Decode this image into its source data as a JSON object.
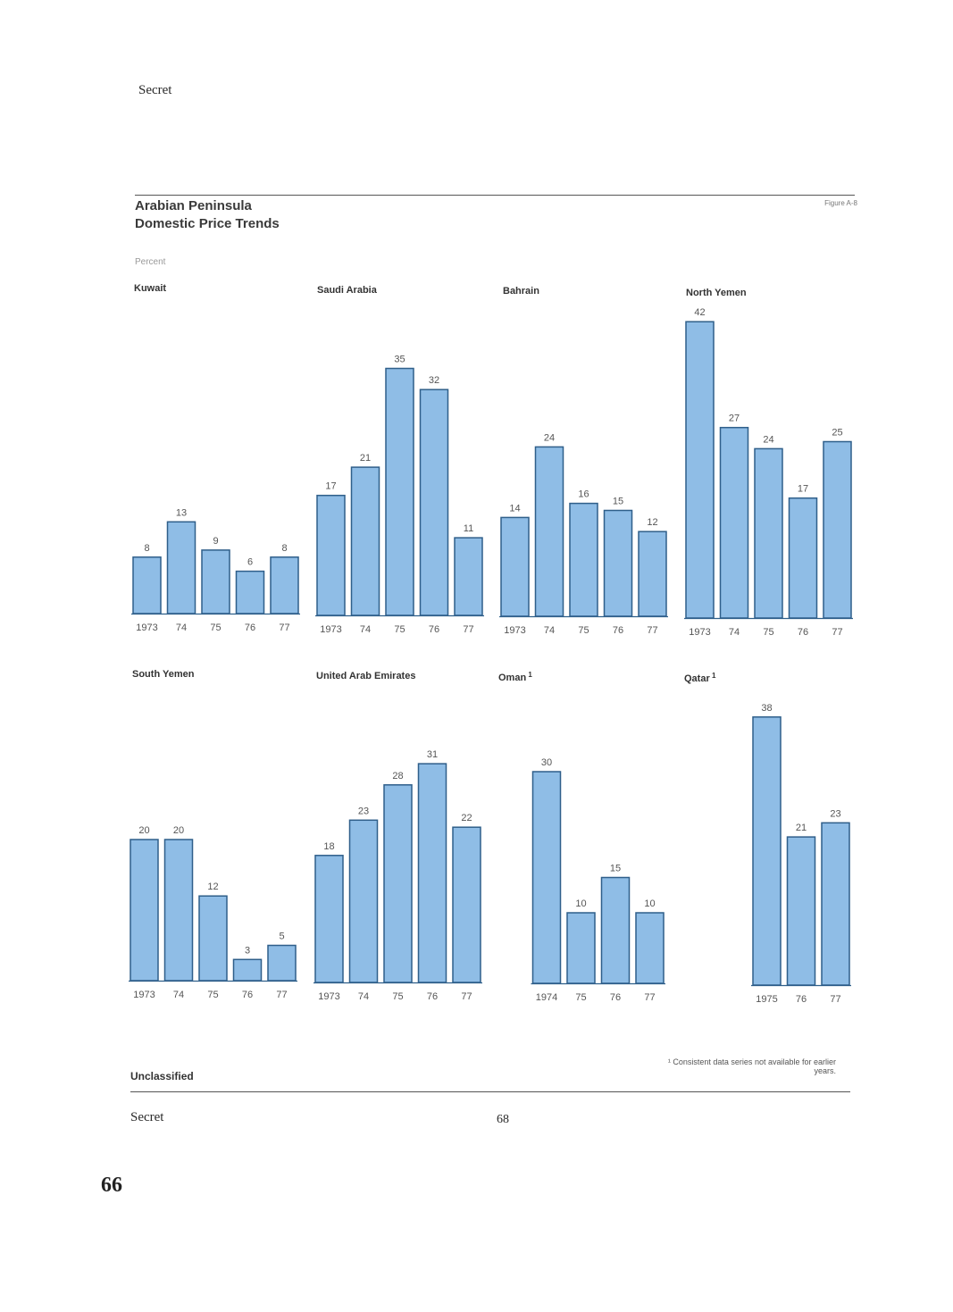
{
  "header": {
    "classification": "Secret"
  },
  "figure": {
    "title_line1": "Arabian Peninsula",
    "title_line2": "Domestic Price Trends",
    "figure_label": "Figure A-8",
    "unit": "Percent"
  },
  "chart_data": [
    {
      "type": "bar",
      "title": "Kuwait",
      "categories": [
        "1973",
        "74",
        "75",
        "76",
        "77"
      ],
      "values": [
        8,
        13,
        9,
        6,
        8
      ]
    },
    {
      "type": "bar",
      "title": "Saudi Arabia",
      "categories": [
        "1973",
        "74",
        "75",
        "76",
        "77"
      ],
      "values": [
        17,
        21,
        35,
        32,
        11
      ]
    },
    {
      "type": "bar",
      "title": "Bahrain",
      "categories": [
        "1973",
        "74",
        "75",
        "76",
        "77"
      ],
      "values": [
        14,
        24,
        16,
        15,
        12
      ]
    },
    {
      "type": "bar",
      "title": "North Yemen",
      "categories": [
        "1973",
        "74",
        "75",
        "76",
        "77"
      ],
      "values": [
        42,
        27,
        24,
        17,
        25
      ]
    },
    {
      "type": "bar",
      "title": "South Yemen",
      "categories": [
        "1973",
        "74",
        "75",
        "76",
        "77"
      ],
      "values": [
        20,
        20,
        12,
        3,
        5
      ]
    },
    {
      "type": "bar",
      "title": "United Arab Emirates",
      "categories": [
        "1973",
        "74",
        "75",
        "76",
        "77"
      ],
      "values": [
        18,
        23,
        28,
        31,
        22
      ]
    },
    {
      "type": "bar",
      "title": "Oman",
      "footnote_mark": "1",
      "categories": [
        "1974",
        "75",
        "76",
        "77"
      ],
      "values": [
        30,
        10,
        15,
        10
      ]
    },
    {
      "type": "bar",
      "title": "Qatar",
      "footnote_mark": "1",
      "categories": [
        "1975",
        "76",
        "77"
      ],
      "values": [
        38,
        21,
        23
      ]
    }
  ],
  "footer": {
    "unclassified": "Unclassified",
    "footnote": "Consistent data series not available for earlier years.",
    "classification": "Secret",
    "page_number": "68",
    "document_page_number": "66"
  },
  "colors": {
    "bar_fill": "#8fbde6",
    "bar_stroke": "#2f5f8a",
    "label": "#555555"
  }
}
